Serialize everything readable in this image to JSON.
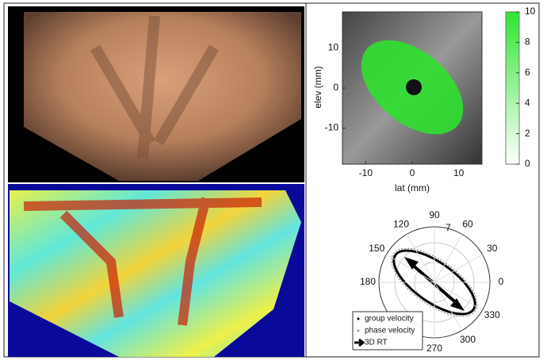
{
  "map_panel": {
    "x_label": "lat (mm)",
    "y_label": "elev (mm)",
    "xlim": [
      -15,
      15
    ],
    "ylim": [
      -19,
      19
    ],
    "xticks": [
      -10,
      0,
      10
    ],
    "yticks": [
      10,
      0,
      -10
    ],
    "colorbar_lim": [
      0,
      10
    ],
    "colorbar_ticks": [
      10,
      8,
      6,
      4,
      2,
      0
    ]
  },
  "polar_panel": {
    "angle_labels": [
      120,
      90,
      60,
      150,
      30,
      180,
      0,
      330,
      300,
      270
    ],
    "radial_label": "7",
    "legend": [
      "group velocity",
      "phase velocity",
      "3D RT"
    ]
  }
}
